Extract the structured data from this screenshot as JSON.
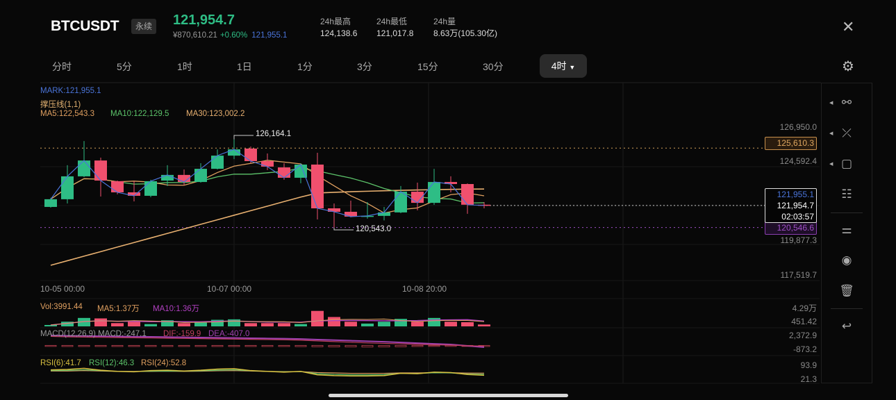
{
  "header": {
    "symbol": "BTCUSDT",
    "tag": "永续",
    "price": "121,954.7",
    "cny": "¥870,610.21",
    "change": "+0.60%",
    "mark": "121,955.1",
    "stats": [
      {
        "label": "24h最高",
        "value": "124,138.6"
      },
      {
        "label": "24h最低",
        "value": "121,017.8"
      },
      {
        "label": "24h量",
        "value": "8.63万(105.30亿)"
      }
    ]
  },
  "tabs": [
    "分时",
    "5分",
    "1时",
    "1日",
    "1分",
    "3分",
    "15分",
    "30分"
  ],
  "active_tab": "4时",
  "indicators": {
    "mark": "MARK:121,955.1",
    "sr": "撑压线(1,1)",
    "ma5": "MA5:122,543.3",
    "ma10": "MA10:122,129.5",
    "ma30": "MA30:123,002.2",
    "vol": "Vol:3991.44",
    "vol_ma5": "MA5:1.37万",
    "vol_ma10": "MA10:1.36万",
    "macd": "MACD(12,26,9) MACD:-247.1",
    "dif": "DIF:-159.9",
    "dea": "DEA:-407.0",
    "rsi6": "RSI(6):41.7",
    "rsi12": "RSI(12):46.3",
    "rsi24": "RSI(24):52.8"
  },
  "axis": {
    "price_ticks": [
      "126,950.0",
      "124,592.4",
      "119,877.3",
      "117,519.7"
    ],
    "resistance": "125,610.3",
    "support": "120,546.6",
    "mark_price": "121,955.1",
    "last_price": "121,954.7",
    "countdown": "02:03:57",
    "vol_ticks": [
      "4.29万",
      "451.42"
    ],
    "macd_ticks": [
      "2,372.9",
      "-873.2"
    ],
    "rsi_ticks": [
      "93.9",
      "21.3"
    ],
    "times": [
      "10-05 00:00",
      "10-07 00:00",
      "10-08 20:00"
    ]
  },
  "annotations": {
    "high": "126,164.1",
    "low": "120,543.0"
  },
  "colors": {
    "up": "#2ebd85",
    "down": "#f0506e",
    "ma5": "#e0a060",
    "ma10": "#5cc36a",
    "ma30": "#e8b070",
    "close_line": "#4a74d9",
    "resistance": "#d4a35a",
    "support": "#a050c8"
  },
  "chart_data": {
    "type": "candlestick",
    "ylim": [
      117519.7,
      126950.0
    ],
    "candles": [
      [
        121860,
        122350,
        122440,
        121815
      ],
      [
        122350,
        123810,
        124520,
        122080
      ],
      [
        123810,
        124820,
        126060,
        123760
      ],
      [
        124820,
        123540,
        125000,
        122520
      ],
      [
        123500,
        122790,
        123540,
        122660
      ],
      [
        122790,
        122570,
        123500,
        122210
      ],
      [
        122570,
        123500,
        123590,
        122480
      ],
      [
        123540,
        123900,
        124520,
        123190
      ],
      [
        123900,
        123450,
        124250,
        123230
      ],
      [
        123450,
        124290,
        124650,
        123410
      ],
      [
        124290,
        125130,
        125530,
        124250
      ],
      [
        125130,
        125530,
        126164.1,
        124910
      ],
      [
        125580,
        124780,
        125710,
        124650
      ],
      [
        124780,
        124430,
        125270,
        124210
      ],
      [
        124380,
        123720,
        124650,
        123590
      ],
      [
        123720,
        124560,
        124650,
        123370
      ],
      [
        124560,
        121770,
        125310,
        121060
      ],
      [
        121770,
        121550,
        122080,
        120543.0
      ],
      [
        121550,
        121240,
        122260,
        121200
      ],
      [
        121240,
        121290,
        122170,
        121110
      ],
      [
        121290,
        121510,
        121860,
        121000
      ],
      [
        121510,
        122830,
        123190,
        121460
      ],
      [
        122830,
        122120,
        123410,
        121640
      ],
      [
        122120,
        123450,
        124290,
        121990
      ],
      [
        123450,
        123320,
        123810,
        122790
      ],
      [
        123320,
        122000,
        123360,
        121420
      ],
      [
        122000,
        121954.7,
        122170,
        121770
      ]
    ],
    "ma30": [
      118140,
      118430,
      118720,
      119010,
      119300,
      119590,
      119880,
      120170,
      120460,
      120750,
      121040,
      121330,
      121620,
      121910,
      122200,
      122490,
      122745,
      122790,
      122830,
      122860,
      122890,
      122920,
      122940,
      122960,
      122980,
      122995,
      123002.2
    ],
    "volume_wan": [
      0.3,
      1.0,
      1.8,
      1.7,
      0.7,
      1.0,
      0.5,
      1.3,
      0.7,
      0.8,
      1.4,
      1.5,
      0.7,
      0.7,
      0.7,
      0.5,
      3.3,
      2.0,
      1.0,
      0.6,
      1.0,
      1.6,
      1.0,
      1.8,
      1.0,
      0.9,
      0.4
    ],
    "vol_ylim": [
      0,
      4.29
    ],
    "dif": [
      2000,
      1900,
      1850,
      1800,
      1750,
      1700,
      1650,
      1600,
      1550,
      1500,
      1450,
      1400,
      1350,
      1300,
      1250,
      1150,
      1000,
      850,
      700,
      550,
      450,
      350,
      250,
      150,
      50,
      -80,
      -159.9
    ],
    "dea": [
      2200,
      2150,
      2100,
      2050,
      2000,
      1950,
      1900,
      1850,
      1800,
      1750,
      1700,
      1650,
      1600,
      1550,
      1500,
      1420,
      1300,
      1180,
      1050,
      920,
      800,
      650,
      500,
      350,
      200,
      -100,
      -407.0
    ],
    "macd_hist": [
      -200,
      -250,
      -250,
      -250,
      -250,
      -250,
      -250,
      -250,
      -250,
      -250,
      -250,
      -250,
      -250,
      -250,
      -250,
      -270,
      -300,
      -330,
      -350,
      -370,
      -350,
      -300,
      -250,
      -200,
      -150,
      -200,
      -247.1
    ],
    "macd_ylim": [
      -873.2,
      2372.9
    ],
    "rsi6": [
      70,
      72,
      78,
      68,
      62,
      60,
      66,
      68,
      64,
      68,
      74,
      76,
      66,
      62,
      58,
      62,
      44,
      40,
      38,
      38,
      40,
      52,
      50,
      58,
      56,
      46,
      41.7
    ],
    "rsi12": [
      66,
      67,
      70,
      66,
      62,
      61,
      63,
      64,
      63,
      65,
      68,
      70,
      65,
      62,
      60,
      61,
      50,
      46,
      44,
      44,
      45,
      52,
      51,
      55,
      54,
      48,
      46.3
    ],
    "rsi24": [
      64,
      64,
      66,
      64,
      62,
      62,
      62,
      63,
      62,
      63,
      65,
      66,
      64,
      62,
      61,
      61,
      56,
      54,
      52,
      52,
      52,
      54,
      54,
      55,
      55,
      53,
      52.8
    ],
    "rsi_ylim": [
      21.3,
      93.9
    ]
  },
  "toolbar": [
    "trend-line",
    "cross-line",
    "rectangle",
    "indicator-settings",
    "indicator-layout",
    "visibility",
    "delete",
    "undo"
  ]
}
